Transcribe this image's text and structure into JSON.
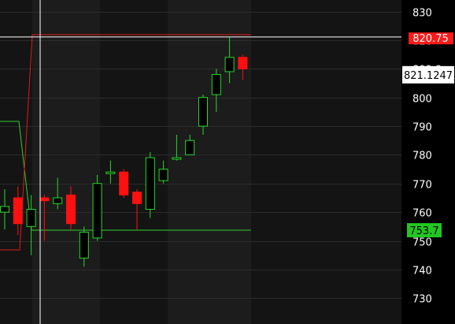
{
  "chart_data": {
    "type": "candlestick",
    "ylim": [
      721,
      834
    ],
    "yticks": [
      730,
      740,
      750,
      760,
      770,
      780,
      790,
      800,
      810,
      820,
      830
    ],
    "candles": [
      {
        "o": 760,
        "h": 768,
        "l": 754,
        "c": 762
      },
      {
        "o": 765,
        "h": 769,
        "l": 752,
        "c": 756
      },
      {
        "o": 755,
        "h": 766,
        "l": 745,
        "c": 761
      },
      {
        "o": 765,
        "h": 766,
        "l": 750,
        "c": 764
      },
      {
        "o": 763,
        "h": 772,
        "l": 761,
        "c": 765
      },
      {
        "o": 766,
        "h": 769,
        "l": 754,
        "c": 756
      },
      {
        "o": 744,
        "h": 755,
        "l": 741,
        "c": 753
      },
      {
        "o": 751,
        "h": 773,
        "l": 750,
        "c": 770
      },
      {
        "o": 774,
        "h": 778,
        "l": 770,
        "c": 774
      },
      {
        "o": 774,
        "h": 775,
        "l": 765,
        "c": 766
      },
      {
        "o": 767,
        "h": 768,
        "l": 754,
        "c": 763
      },
      {
        "o": 761,
        "h": 781,
        "l": 758,
        "c": 779
      },
      {
        "o": 771,
        "h": 778,
        "l": 770,
        "c": 775
      },
      {
        "o": 779,
        "h": 787,
        "l": 778,
        "c": 779
      },
      {
        "o": 780,
        "h": 787,
        "l": 780,
        "c": 785
      },
      {
        "o": 790,
        "h": 801,
        "l": 787,
        "c": 800
      },
      {
        "o": 801,
        "h": 810,
        "l": 795,
        "c": 808
      },
      {
        "o": 809,
        "h": 821,
        "l": 805,
        "c": 814
      },
      {
        "o": 814,
        "h": 815,
        "l": 806,
        "c": 810
      }
    ],
    "lines": {
      "resistance": 820.75,
      "support": 753.7,
      "gray_level": 809.9,
      "crosshair": 821.1247
    },
    "price_labels": {
      "resistance": "820.75",
      "gray_level": "809.9",
      "crosshair": "821.1247",
      "support": "753.7"
    },
    "colors": {
      "up": "#2ad62a",
      "down": "#ff1010",
      "resistance": "#e01a1a",
      "support": "#33cc33",
      "crosshair": "#ffffff",
      "background": "#000000",
      "axis_text": "#ffffff"
    }
  }
}
